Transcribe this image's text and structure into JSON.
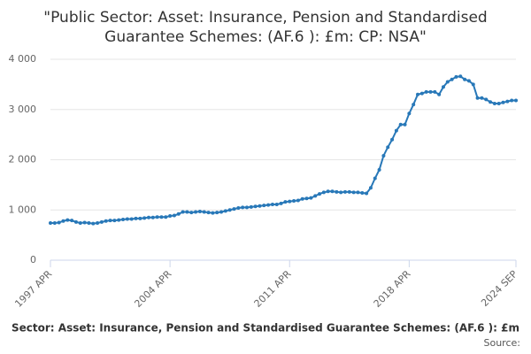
{
  "chart_data": {
    "type": "line",
    "title": [
      "\"Public Sector: Asset: Insurance, Pension and Standardised",
      "Guarantee Schemes: (AF.6 ): £m: CP: NSA\""
    ],
    "x_label": "Sector: Asset: Insurance, Pension and Standardised Guarantee Schemes: (AF.6 ): £m",
    "source": "Source:",
    "categories": [
      "1997 APR",
      null,
      null,
      null,
      null,
      null,
      null,
      null,
      null,
      null,
      null,
      null,
      null,
      null,
      null,
      null,
      null,
      null,
      null,
      null,
      null,
      null,
      null,
      null,
      null,
      null,
      null,
      null,
      "2004 APR",
      null,
      null,
      null,
      null,
      null,
      null,
      null,
      null,
      null,
      null,
      null,
      null,
      null,
      null,
      null,
      null,
      null,
      null,
      null,
      null,
      null,
      null,
      null,
      null,
      null,
      null,
      null,
      "2011 APR",
      null,
      null,
      null,
      null,
      null,
      null,
      null,
      null,
      null,
      null,
      null,
      null,
      null,
      null,
      null,
      null,
      null,
      null,
      null,
      null,
      null,
      null,
      null,
      null,
      null,
      null,
      null,
      "2018 APR",
      null,
      null,
      null,
      null,
      null,
      null,
      null,
      null,
      null,
      null,
      null,
      null,
      null,
      null,
      null,
      null,
      null,
      null,
      null,
      null,
      null,
      null,
      null,
      null,
      "2024 SEP"
    ],
    "series": [
      {
        "name": "AF.6",
        "color": "#2878b8",
        "values": [
          740,
          740,
          750,
          780,
          800,
          790,
          760,
          740,
          750,
          740,
          730,
          740,
          760,
          780,
          790,
          790,
          800,
          810,
          820,
          820,
          830,
          830,
          840,
          850,
          850,
          860,
          860,
          860,
          880,
          890,
          920,
          960,
          960,
          950,
          960,
          970,
          960,
          950,
          940,
          950,
          960,
          980,
          1000,
          1020,
          1040,
          1050,
          1050,
          1060,
          1070,
          1080,
          1090,
          1100,
          1110,
          1110,
          1130,
          1160,
          1170,
          1180,
          1190,
          1220,
          1230,
          1240,
          1280,
          1320,
          1350,
          1370,
          1370,
          1360,
          1350,
          1360,
          1360,
          1350,
          1350,
          1340,
          1330,
          1440,
          1630,
          1800,
          2080,
          2250,
          2400,
          2580,
          2700,
          2700,
          2920,
          3100,
          3300,
          3320,
          3350,
          3350,
          3350,
          3300,
          3450,
          3550,
          3600,
          3650,
          3660,
          3600,
          3570,
          3500,
          3230,
          3230,
          3200,
          3150,
          3120,
          3120,
          3140,
          3160,
          3180,
          3180
        ]
      }
    ],
    "ylim": [
      0,
      4000
    ],
    "yticks": [
      0,
      {
        "value": 1000,
        "label": "1 000"
      },
      {
        "value": 2000,
        "label": "2 000"
      },
      {
        "value": 3000,
        "label": "3 000"
      },
      {
        "value": 4000,
        "label": "4 000"
      }
    ],
    "grid": true
  }
}
